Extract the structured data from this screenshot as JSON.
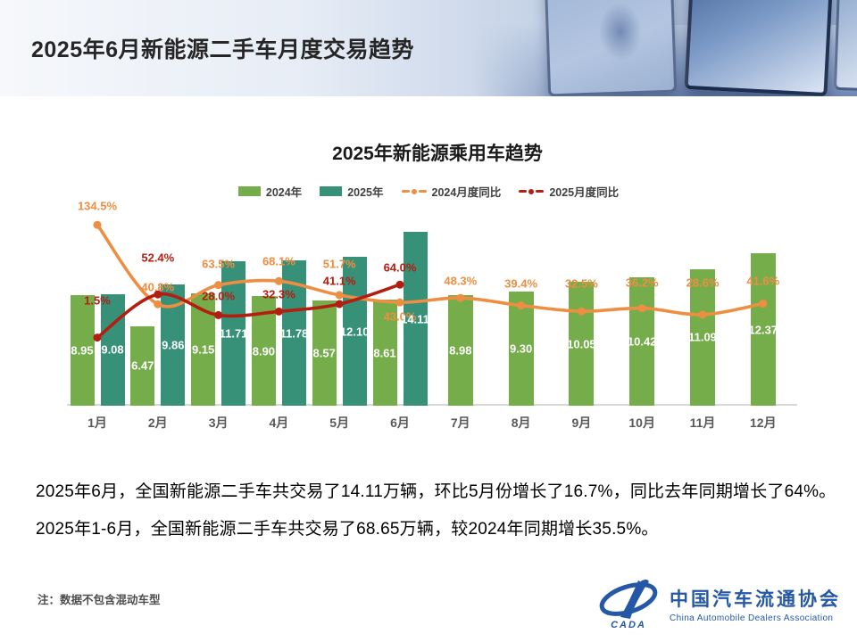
{
  "header": {
    "title": "2025年6月新能源二手车月度交易趋势"
  },
  "chart": {
    "title": "2025年新能源乘用车趋势"
  },
  "chart_data": {
    "type": "bar",
    "subtype": "combo-bar-line",
    "title": "2025年新能源乘用车趋势",
    "categories": [
      "1月",
      "2月",
      "3月",
      "4月",
      "5月",
      "6月",
      "7月",
      "8月",
      "9月",
      "10月",
      "11月",
      "12月"
    ],
    "series": [
      {
        "name": "2024年",
        "type": "bar",
        "color": "#76AD4B",
        "values": [
          8.95,
          6.47,
          9.15,
          8.9,
          8.57,
          8.61,
          8.98,
          9.3,
          10.05,
          10.42,
          11.09,
          12.37
        ]
      },
      {
        "name": "2025年",
        "type": "bar",
        "color": "#379078",
        "values": [
          9.08,
          9.86,
          11.71,
          11.78,
          12.1,
          14.11,
          null,
          null,
          null,
          null,
          null,
          null
        ]
      },
      {
        "name": "2024月度同比",
        "type": "line",
        "unit": "%",
        "color": "#EE8E42",
        "values": [
          134.5,
          40.8,
          63.5,
          68.1,
          51.7,
          43.0,
          48.3,
          39.4,
          32.5,
          36.2,
          28.6,
          41.6
        ]
      },
      {
        "name": "2025月度同比",
        "type": "line",
        "unit": "%",
        "color": "#B41E10",
        "values": [
          1.5,
          52.4,
          28.0,
          32.3,
          41.1,
          64.0,
          null,
          null,
          null,
          null,
          null,
          null
        ]
      }
    ],
    "bar_label_color": "#FFFFFF",
    "grid": false,
    "legend_position": "top",
    "y_axis_visible": false,
    "ylim_bars": [
      0,
      16
    ],
    "ylim_lines_percent": [
      -80,
      140
    ]
  },
  "body": {
    "line1": "2025年6月，全国新能源二手车共交易了14.11万辆，环比5月份增长了16.7%，同比去年同期增长了64%。",
    "line2": "2025年1-6月，全国新能源二手车共交易了68.65万辆，较2024年同期增长35.5%。"
  },
  "note": "注：数据不包含混动车型",
  "logo": {
    "cn": "中国汽车流通协会",
    "en": "China Automobile Dealers Association",
    "badge": "CADA"
  }
}
